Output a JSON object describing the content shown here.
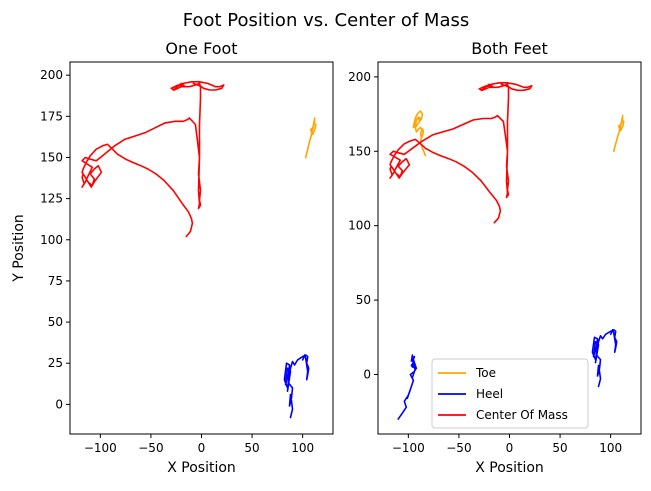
{
  "chart_data": {
    "title": "Foot Position vs. Center of Mass",
    "type": "line",
    "panels": [
      {
        "title": "One Foot",
        "xlabel": "X Position",
        "ylabel": "Y Position",
        "xlim": [
          -130,
          130
        ],
        "ylim": [
          -18,
          208
        ],
        "xticks": [
          -100,
          -50,
          0,
          50,
          100
        ],
        "yticks": [
          0,
          25,
          50,
          75,
          100,
          125,
          150,
          175,
          200
        ],
        "grid": false,
        "legend": null,
        "series": [
          {
            "color": "#ffa500",
            "x": [
              103,
              105,
              107,
              108,
              109,
              108,
              110,
              109,
              111,
              112,
              110,
              112,
              111,
              113,
              112,
              110
            ],
            "y": [
              150,
              155,
              160,
              162,
              165,
              167,
              168,
              165,
              170,
              172,
              168,
              174,
              171,
              170,
              167,
              164
            ]
          },
          {
            "color": "#0000ff",
            "x": [
              88,
              90,
              89,
              88,
              87,
              89,
              90,
              86,
              85,
              87,
              88,
              85,
              83,
              86,
              87,
              84,
              82,
              85,
              88,
              86,
              84,
              87,
              90,
              92,
              95,
              100,
              103,
              105,
              104,
              106,
              105,
              104,
              105,
              103,
              102,
              100
            ],
            "y": [
              -8,
              -3,
              2,
              6,
              -1,
              4,
              10,
              13,
              8,
              16,
              20,
              22,
              12,
              18,
              24,
              25,
              15,
              10,
              22,
              18,
              15,
              20,
              26,
              24,
              27,
              29,
              30,
              29,
              25,
              22,
              18,
              15,
              20,
              28,
              30,
              27
            ]
          },
          {
            "color": "#ff0000",
            "x": [
              -15,
              -11,
              -9,
              -10,
              -13,
              -19,
              -28,
              -37,
              -45,
              -53,
              -60,
              -68,
              -75,
              -83,
              -88,
              -93,
              -98,
              -104,
              -110,
              -114,
              -117,
              -118,
              -116,
              -112,
              -108,
              -106,
              -110,
              -106,
              -102,
              -99,
              -105,
              -109,
              -113,
              -117,
              -118,
              -116,
              -118,
              -115,
              -112,
              -108,
              -113,
              -118,
              -115,
              -110,
              -104,
              -96,
              -86,
              -76,
              -66,
              -56,
              -46,
              -36,
              -26,
              -18,
              -14,
              -12,
              -6,
              -4,
              -2,
              -3,
              -1,
              -2,
              -1,
              -3,
              -2,
              -3,
              -2,
              -2,
              -1,
              -1,
              -2,
              -6,
              -12,
              -20,
              -27,
              -30,
              -23,
              -16,
              -20,
              -28,
              -24,
              -18,
              -10,
              -2,
              6,
              14,
              18,
              22,
              20,
              14,
              8,
              2,
              0,
              -4,
              -8
            ],
            "y": [
              102,
              105,
              110,
              113,
              117,
              122,
              130,
              136,
              140,
              143,
              145,
              147,
              149,
              152,
              155,
              158,
              157,
              155,
              151,
              147,
              143,
              141,
              139,
              135,
              133,
              137,
              140,
              143,
              145,
              141,
              136,
              132,
              136,
              140,
              138,
              134,
              132,
              135,
              139,
              144,
              146,
              148,
              150,
              149,
              148,
              152,
              157,
              161,
              163,
              165,
              168,
              171,
              172,
              172,
              173,
              174,
              170,
              160,
              150,
              140,
              130,
              124,
              121,
              119,
              122,
              130,
              150,
              170,
              186,
              193,
              195,
              194,
              193,
              193,
              191,
              192,
              194,
              193,
              195,
              191,
              193,
              195,
              196,
              196,
              195,
              193,
              193,
              194,
              192,
              191,
              191,
              192,
              193,
              194,
              195
            ]
          }
        ]
      },
      {
        "title": "Both Feet",
        "xlabel": "X Position",
        "ylabel": "",
        "xlim": [
          -130,
          130
        ],
        "ylim": [
          -40,
          210
        ],
        "xticks": [
          -100,
          -50,
          0,
          50,
          100
        ],
        "yticks": [
          0,
          50,
          100,
          150,
          200
        ],
        "grid": false,
        "legend": "lower center",
        "series": [
          {
            "name": "Toe",
            "color": "#ffa500",
            "x": [
              103,
              105,
              107,
              108,
              109,
              108,
              110,
              109,
              111,
              112,
              110,
              112,
              111,
              113,
              112,
              110
            ],
            "y": [
              150,
              155,
              160,
              162,
              165,
              167,
              168,
              165,
              170,
              172,
              168,
              174,
              171,
              170,
              167,
              164
            ]
          },
          {
            "name": "Toe",
            "legend": false,
            "color": "#ffa500",
            "x": [
              -83,
              -86,
              -88,
              -87,
              -85,
              -86,
              -88,
              -87,
              -85,
              -88,
              -90,
              -92,
              -93,
              -91,
              -89,
              -88,
              -90,
              -92,
              -93,
              -95,
              -94,
              -92,
              -90,
              -88,
              -86,
              -87,
              -89,
              -90,
              -92,
              -93
            ],
            "y": [
              147,
              152,
              156,
              160,
              163,
              165,
              162,
              159,
              163,
              166,
              165,
              163,
              166,
              168,
              170,
              172,
              173,
              171,
              168,
              166,
              170,
              174,
              176,
              177,
              175,
              172,
              170,
              173,
              171,
              167
            ]
          },
          {
            "name": "Heel",
            "color": "#0000ff",
            "x": [
              88,
              90,
              89,
              88,
              87,
              89,
              90,
              86,
              85,
              87,
              88,
              85,
              83,
              86,
              87,
              84,
              82,
              85,
              88,
              86,
              84,
              87,
              90,
              92,
              95,
              100,
              103,
              105,
              104,
              106,
              105,
              104,
              105,
              103,
              102,
              100
            ],
            "y": [
              -8,
              -3,
              2,
              6,
              -1,
              4,
              10,
              13,
              8,
              16,
              20,
              22,
              12,
              18,
              24,
              25,
              15,
              10,
              22,
              18,
              15,
              20,
              26,
              24,
              27,
              29,
              30,
              29,
              25,
              22,
              18,
              15,
              20,
              28,
              30,
              27
            ]
          },
          {
            "name": "Heel",
            "legend": false,
            "color": "#0000ff",
            "x": [
              -110,
              -106,
              -102,
              -104,
              -100,
              -98,
              -101,
              -97,
              -95,
              -98,
              -94,
              -96,
              -93,
              -97,
              -95,
              -92,
              -95,
              -94,
              -97,
              -96,
              -95,
              -93,
              -94,
              -96
            ],
            "y": [
              -30,
              -26,
              -22,
              -18,
              -14,
              -10,
              -16,
              -8,
              -4,
              0,
              2,
              -2,
              4,
              6,
              8,
              4,
              10,
              12,
              9,
              13,
              6,
              3,
              8,
              5
            ]
          },
          {
            "name": "Center Of Mass",
            "color": "#ff0000",
            "x": [
              -15,
              -11,
              -9,
              -10,
              -13,
              -19,
              -28,
              -37,
              -45,
              -53,
              -60,
              -68,
              -75,
              -83,
              -88,
              -93,
              -98,
              -104,
              -110,
              -114,
              -117,
              -118,
              -116,
              -112,
              -108,
              -106,
              -110,
              -106,
              -102,
              -99,
              -105,
              -109,
              -113,
              -117,
              -118,
              -116,
              -118,
              -115,
              -112,
              -108,
              -113,
              -118,
              -115,
              -110,
              -104,
              -96,
              -86,
              -76,
              -66,
              -56,
              -46,
              -36,
              -26,
              -18,
              -14,
              -12,
              -6,
              -4,
              -2,
              -3,
              -1,
              -2,
              -1,
              -3,
              -2,
              -3,
              -2,
              -2,
              -1,
              -1,
              -2,
              -6,
              -12,
              -20,
              -27,
              -30,
              -23,
              -16,
              -20,
              -28,
              -24,
              -18,
              -10,
              -2,
              6,
              14,
              18,
              22,
              20,
              14,
              8,
              2,
              0,
              -4,
              -8
            ],
            "y": [
              102,
              105,
              110,
              113,
              117,
              122,
              130,
              136,
              140,
              143,
              145,
              147,
              149,
              152,
              155,
              158,
              157,
              155,
              151,
              147,
              143,
              141,
              139,
              135,
              133,
              137,
              140,
              143,
              145,
              141,
              136,
              132,
              136,
              140,
              138,
              134,
              132,
              135,
              139,
              144,
              146,
              148,
              150,
              149,
              148,
              152,
              157,
              161,
              163,
              165,
              168,
              171,
              172,
              172,
              173,
              174,
              170,
              160,
              150,
              140,
              130,
              124,
              121,
              119,
              122,
              130,
              150,
              170,
              186,
              193,
              195,
              194,
              193,
              193,
              191,
              192,
              194,
              193,
              195,
              191,
              193,
              195,
              196,
              196,
              195,
              193,
              193,
              194,
              192,
              191,
              191,
              192,
              193,
              194,
              195
            ]
          }
        ]
      }
    ]
  }
}
